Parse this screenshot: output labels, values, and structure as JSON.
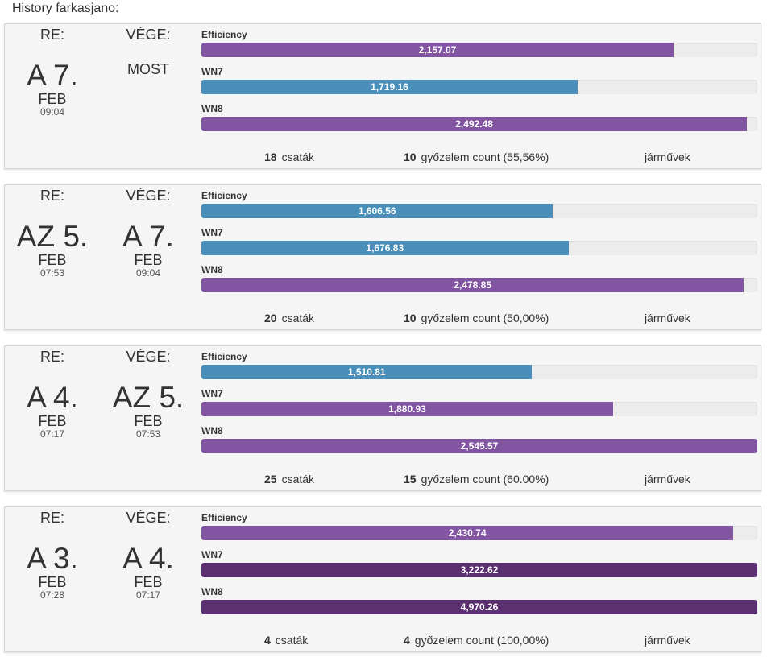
{
  "heading": "History farkasjano:",
  "colors": {
    "purple": "#8255a3",
    "blue": "#4a8fb9",
    "dark_purple": "#5a3070"
  },
  "max_value": 2540,
  "sessions": [
    {
      "start": {
        "label": "RE:",
        "day": "A 7.",
        "month": "FEB",
        "time": "09:04"
      },
      "end": {
        "label": "VÉGE:",
        "now": "MOST",
        "day": "",
        "month": "",
        "time": ""
      },
      "metrics": [
        {
          "label": "Efficiency",
          "value_text": "2,157.07",
          "value": 2157.07,
          "color": "#8255a3"
        },
        {
          "label": "WN7",
          "value_text": "1,719.16",
          "value": 1719.16,
          "color": "#4a8fb9"
        },
        {
          "label": "WN8",
          "value_text": "2,492.48",
          "value": 2492.48,
          "color": "#8255a3"
        }
      ],
      "battles": {
        "count": "18",
        "label": "csaták"
      },
      "wins": {
        "count": "10",
        "label": "győzelem count (55,56%)"
      },
      "vehicles": {
        "label": "járművek"
      }
    },
    {
      "start": {
        "label": "RE:",
        "day": "AZ 5.",
        "month": "FEB",
        "time": "07:53"
      },
      "end": {
        "label": "VÉGE:",
        "now": "",
        "day": "A 7.",
        "month": "FEB",
        "time": "09:04"
      },
      "metrics": [
        {
          "label": "Efficiency",
          "value_text": "1,606.56",
          "value": 1606.56,
          "color": "#4a8fb9"
        },
        {
          "label": "WN7",
          "value_text": "1,676.83",
          "value": 1676.83,
          "color": "#4a8fb9"
        },
        {
          "label": "WN8",
          "value_text": "2,478.85",
          "value": 2478.85,
          "color": "#8255a3"
        }
      ],
      "battles": {
        "count": "20",
        "label": "csaták"
      },
      "wins": {
        "count": "10",
        "label": "győzelem count (50,00%)"
      },
      "vehicles": {
        "label": "járművek"
      }
    },
    {
      "start": {
        "label": "RE:",
        "day": "A 4.",
        "month": "FEB",
        "time": "07:17"
      },
      "end": {
        "label": "VÉGE:",
        "now": "",
        "day": "AZ 5.",
        "month": "FEB",
        "time": "07:53"
      },
      "metrics": [
        {
          "label": "Efficiency",
          "value_text": "1,510.81",
          "value": 1510.81,
          "color": "#4a8fb9"
        },
        {
          "label": "WN7",
          "value_text": "1,880.93",
          "value": 1880.93,
          "color": "#8255a3"
        },
        {
          "label": "WN8",
          "value_text": "2,545.57",
          "value": 2545.57,
          "color": "#8255a3"
        }
      ],
      "battles": {
        "count": "25",
        "label": "csaták"
      },
      "wins": {
        "count": "15",
        "label": "győzelem count (60.00%)"
      },
      "vehicles": {
        "label": "járművek"
      }
    },
    {
      "start": {
        "label": "RE:",
        "day": "A 3.",
        "month": "FEB",
        "time": "07:28"
      },
      "end": {
        "label": "VÉGE:",
        "now": "",
        "day": "A 4.",
        "month": "FEB",
        "time": "07:17"
      },
      "metrics": [
        {
          "label": "Efficiency",
          "value_text": "2,430.74",
          "value": 2430.74,
          "color": "#8255a3"
        },
        {
          "label": "WN7",
          "value_text": "3,222.62",
          "value": 3222.62,
          "color": "#5a3070"
        },
        {
          "label": "WN8",
          "value_text": "4,970.26",
          "value": 4970.26,
          "color": "#5a3070"
        }
      ],
      "battles": {
        "count": "4",
        "label": "csaták"
      },
      "wins": {
        "count": "4",
        "label": "győzelem count (100,00%)"
      },
      "vehicles": {
        "label": "járművek"
      }
    }
  ]
}
